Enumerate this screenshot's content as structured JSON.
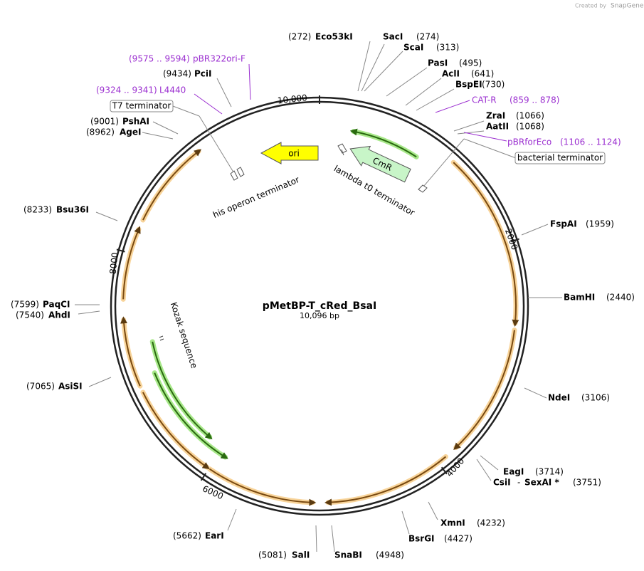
{
  "header": {
    "credit": "Created by",
    "brand": "SnapGene"
  },
  "plasmid": {
    "name": "pMetBP-T_cRed_BsaI",
    "length": "10,096 bp"
  },
  "ruler": [
    "10,000",
    "2000",
    "4000",
    "6000",
    "8000"
  ],
  "sites": [
    {
      "name": "Eco53kI",
      "position": "(272)"
    },
    {
      "name": "SacI",
      "position": "(274)"
    },
    {
      "name": "ScaI",
      "position": "(313)"
    },
    {
      "name": "PasI",
      "position": "(495)"
    },
    {
      "name": "AclI",
      "position": "(641)"
    },
    {
      "name": "BspEI",
      "position": "(730)"
    },
    {
      "name": "ZraI",
      "position": "(1066)"
    },
    {
      "name": "AatII",
      "position": "(1068)"
    },
    {
      "name": "FspAI",
      "position": "(1959)"
    },
    {
      "name": "BamHI",
      "position": "(2440)"
    },
    {
      "name": "NdeI",
      "position": "(3106)"
    },
    {
      "name": "EagI",
      "position": "(3714)"
    },
    {
      "name": "XmnI",
      "position": "(4232)"
    },
    {
      "name": "BsrGI",
      "position": "(4427)"
    },
    {
      "name": "SnaBI",
      "position": "(4948)"
    },
    {
      "name": "SalI",
      "position": "(5081)"
    },
    {
      "name": "EarI",
      "position": "(5662)"
    },
    {
      "name": "AsiSI",
      "position": "(7065)"
    },
    {
      "name": "AhdI",
      "position": "(7540)"
    },
    {
      "name": "PaqCI",
      "position": "(7599)"
    },
    {
      "name": "Bsu36I",
      "position": "(8233)"
    },
    {
      "name": "AgeI",
      "position": "(8962)"
    },
    {
      "name": "PshAI",
      "position": "(9001)"
    },
    {
      "name": "PciI",
      "position": "(9434)"
    }
  ],
  "shared_site": {
    "first": "CsiI",
    "separator": "-",
    "second": "SexAI *",
    "position": "(3751)"
  },
  "primers": [
    {
      "name": "pBR322ori-F",
      "range": "(9575 .. 9594)"
    },
    {
      "name": "L4440",
      "range": "(9324 .. 9341)"
    },
    {
      "name": "CAT-R",
      "range": "(859 .. 878)"
    },
    {
      "name": "pBRforEco",
      "range": "(1106 .. 1124)"
    }
  ],
  "features": {
    "ori": "ori",
    "cmr": "CmR",
    "lambda": "lambda t0 terminator",
    "his": "his operon terminator",
    "kozak": "Kozak sequence",
    "t7": "T7 terminator",
    "bacterial": "bacterial terminator"
  }
}
